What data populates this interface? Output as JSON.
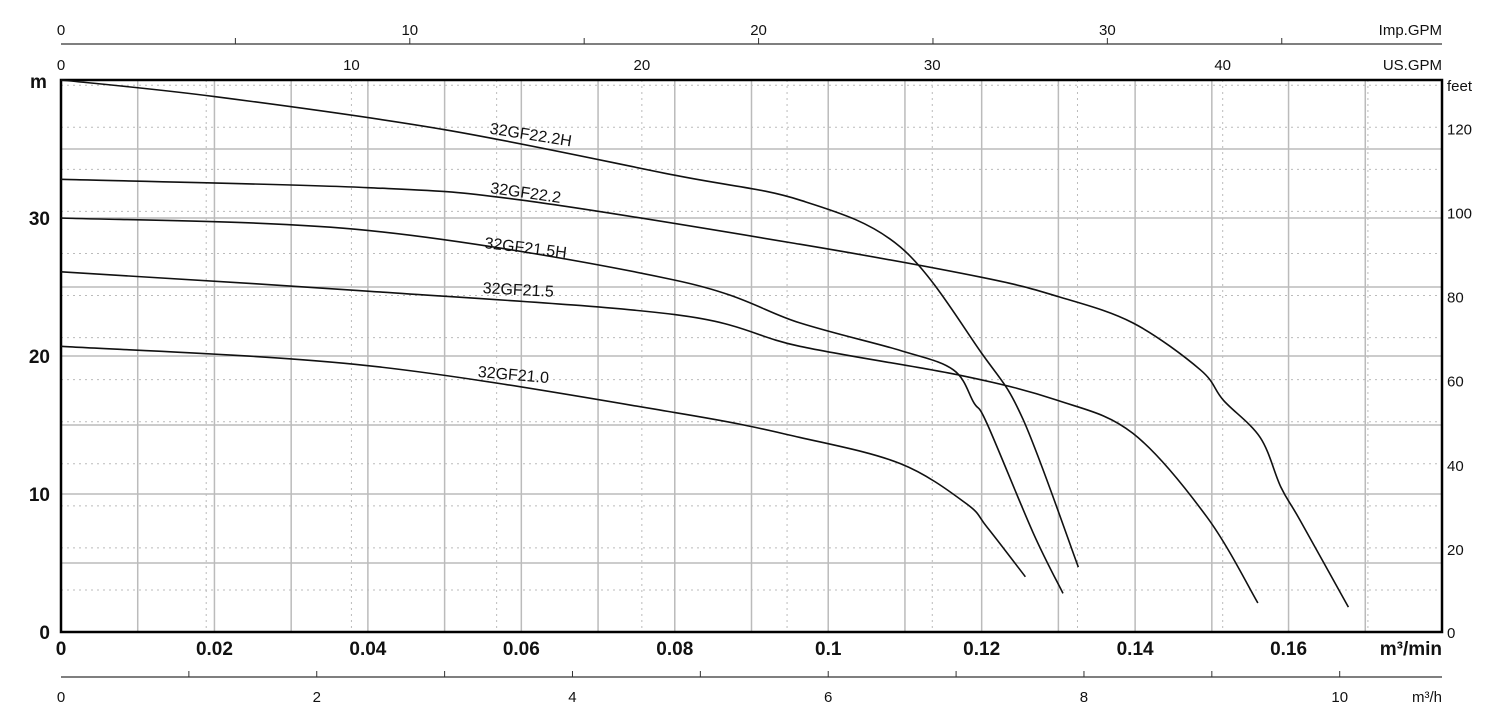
{
  "chart_data": {
    "type": "line",
    "title": "",
    "xlabel": "m³/min",
    "ylabel": "m",
    "xlim": [
      0,
      0.18
    ],
    "ylim": [
      0,
      40
    ],
    "x_ticks": [
      "0",
      "0.02",
      "0.04",
      "0.06",
      "0.08",
      "0.1",
      "0.12",
      "0.14",
      "0.16"
    ],
    "y_ticks": [
      "0",
      "10",
      "20",
      "30"
    ],
    "secondary_axes": {
      "top_imp": {
        "label": "Imp.GPM",
        "ticks": [
          "0",
          "10",
          "20",
          "30"
        ]
      },
      "top_us": {
        "label": "US.GPM",
        "ticks": [
          "0",
          "10",
          "20",
          "30",
          "40"
        ]
      },
      "right_feet": {
        "label": "feet",
        "ticks": [
          "0",
          "20",
          "40",
          "60",
          "80",
          "100",
          "120"
        ]
      },
      "bottom_m3h": {
        "label": "m³/h",
        "ticks": [
          "0",
          "2",
          "4",
          "6",
          "8",
          "10"
        ]
      }
    },
    "grid": true,
    "series": [
      {
        "name": "32GF22.2H",
        "x": [
          0,
          0.02,
          0.05,
          0.08,
          0.0963,
          0.1094,
          0.12,
          0.1254,
          0.1326
        ],
        "y": [
          40,
          38.8,
          36.4,
          33.1,
          31.3,
          27.9,
          20.2,
          15.4,
          4.7
        ]
      },
      {
        "name": "32GF22.2",
        "x": [
          0,
          0.04,
          0.06,
          0.0963,
          0.12,
          0.13,
          0.1397,
          0.1485,
          0.1515,
          0.1563,
          0.159,
          0.1615,
          0.1678
        ],
        "y": [
          32.8,
          32.2,
          31.3,
          28.1,
          25.7,
          24.3,
          22.4,
          19.0,
          16.8,
          14.1,
          10.5,
          8.1,
          1.8
        ]
      },
      {
        "name": "32GF21.5H",
        "x": [
          0,
          0.04,
          0.08,
          0.0963,
          0.1094,
          0.1163,
          0.119,
          0.1207,
          0.1267,
          0.1306
        ],
        "y": [
          30.0,
          29.1,
          25.5,
          22.4,
          20.4,
          19.0,
          16.6,
          15.1,
          7.2,
          2.8
        ]
      },
      {
        "name": "32GF21.5",
        "x": [
          0,
          0.04,
          0.08,
          0.0963,
          0.1172,
          0.1298,
          0.1397,
          0.1494,
          0.156
        ],
        "y": [
          26.1,
          24.7,
          23.0,
          20.7,
          18.6,
          16.8,
          14.4,
          8.3,
          2.1
        ]
      },
      {
        "name": "32GF21.0",
        "x": [
          0,
          0.04,
          0.08,
          0.0963,
          0.1094,
          0.118,
          0.1207,
          0.1257
        ],
        "y": [
          20.7,
          19.3,
          15.9,
          14.1,
          12.2,
          9.3,
          7.6,
          4.0
        ]
      }
    ]
  }
}
